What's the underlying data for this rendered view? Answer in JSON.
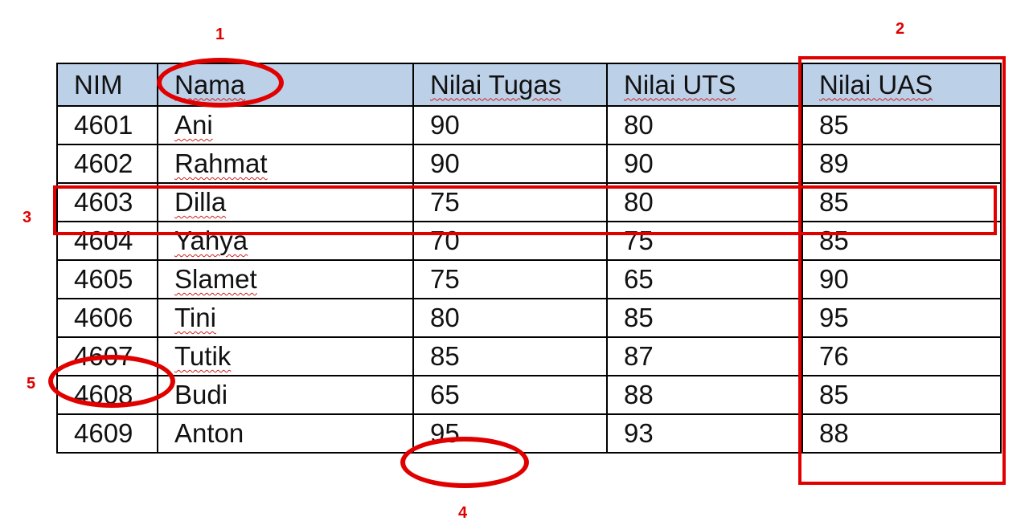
{
  "table": {
    "headers": [
      "NIM",
      "Nama",
      "Nilai Tugas",
      "Nilai UTS",
      "Nilai UAS"
    ],
    "rows": [
      [
        "4601",
        "Ani",
        "90",
        "80",
        "85"
      ],
      [
        "4602",
        "Rahmat",
        "90",
        "90",
        "89"
      ],
      [
        "4603",
        "Dilla",
        "75",
        "80",
        "85"
      ],
      [
        "4604",
        "Yahya",
        "70",
        "75",
        "85"
      ],
      [
        "4605",
        "Slamet",
        "75",
        "65",
        "90"
      ],
      [
        "4606",
        "Tini",
        "80",
        "85",
        "95"
      ],
      [
        "4607",
        "Tutik",
        "85",
        "87",
        "76"
      ],
      [
        "4608",
        "Budi",
        "65",
        "88",
        "85"
      ],
      [
        "4609",
        "Anton",
        "95",
        "93",
        "88"
      ]
    ]
  },
  "annotations": {
    "label_1": "1",
    "label_2": "2",
    "label_3": "3",
    "label_4": "4",
    "label_5": "5",
    "color": "#e00000"
  }
}
